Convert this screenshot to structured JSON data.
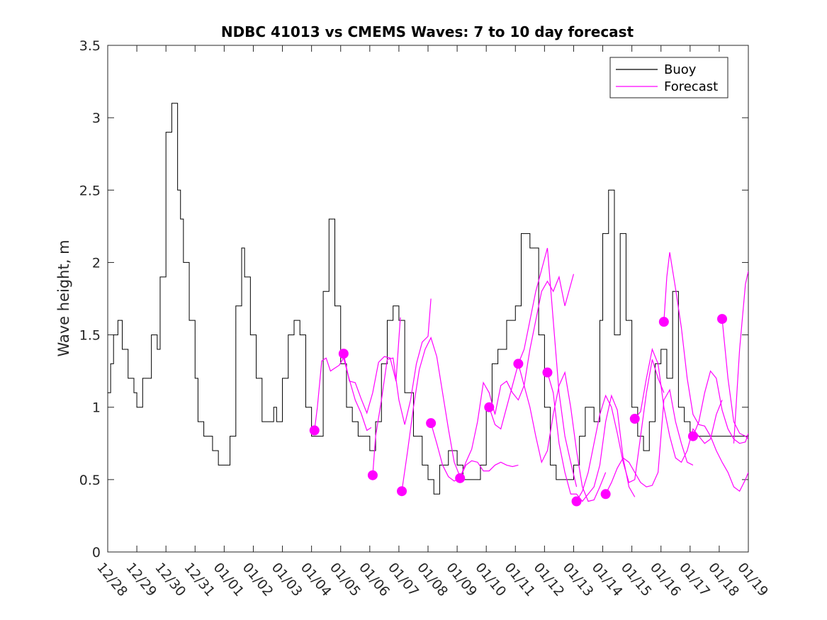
{
  "chart_data": {
    "type": "line",
    "title": "NDBC 41013 vs CMEMS Waves: 7 to 10 day forecast",
    "xlabel": "",
    "ylabel": "Wave height, m",
    "xlim": [
      0,
      22
    ],
    "ylim": [
      0,
      3.5
    ],
    "x_ticks": [
      0,
      1,
      2,
      3,
      4,
      5,
      6,
      7,
      8,
      9,
      10,
      11,
      12,
      13,
      14,
      15,
      16,
      17,
      18,
      19,
      20,
      21,
      22
    ],
    "x_tick_labels": [
      "12/28",
      "12/29",
      "12/30",
      "12/31",
      "01/01",
      "01/02",
      "01/03",
      "01/04",
      "01/05",
      "01/06",
      "01/07",
      "01/08",
      "01/09",
      "01/10",
      "01/11",
      "01/12",
      "01/13",
      "01/14",
      "01/15",
      "01/16",
      "01/17",
      "01/18",
      "01/19"
    ],
    "y_ticks": [
      0,
      0.5,
      1,
      1.5,
      2,
      2.5,
      3,
      3.5
    ],
    "y_tick_labels": [
      "0",
      "0.5",
      "1",
      "1.5",
      "2",
      "2.5",
      "3",
      "3.5"
    ],
    "legend": {
      "position": "top-right",
      "entries": [
        "Buoy",
        "Forecast"
      ]
    },
    "colors": {
      "buoy": "#000000",
      "forecast": "#ff00ff"
    },
    "series": [
      {
        "name": "Buoy",
        "x": [
          0,
          0.1,
          0.2,
          0.35,
          0.5,
          0.7,
          0.9,
          1.0,
          1.2,
          1.5,
          1.7,
          1.8,
          2.0,
          2.2,
          2.4,
          2.5,
          2.6,
          2.8,
          3.0,
          3.1,
          3.3,
          3.6,
          3.8,
          4.0,
          4.2,
          4.4,
          4.6,
          4.7,
          4.9,
          5.1,
          5.3,
          5.5,
          5.7,
          5.8,
          6.0,
          6.2,
          6.4,
          6.6,
          6.8,
          7.0,
          7.2,
          7.4,
          7.6,
          7.8,
          8.0,
          8.2,
          8.4,
          8.6,
          8.8,
          9.0,
          9.2,
          9.4,
          9.6,
          9.8,
          10.0,
          10.2,
          10.5,
          10.8,
          11.0,
          11.2,
          11.4,
          11.7,
          12.0,
          12.2,
          12.5,
          12.8,
          13.0,
          13.2,
          13.4,
          13.7,
          14.0,
          14.2,
          14.5,
          14.8,
          15.0,
          15.2,
          15.4,
          15.6,
          15.8,
          16.0,
          16.2,
          16.4,
          16.5,
          16.7,
          16.9,
          17.0,
          17.2,
          17.4,
          17.6,
          17.8,
          18.0,
          18.2,
          18.4,
          18.6,
          18.8,
          19.0,
          19.2,
          19.4,
          19.6,
          19.8,
          20.0,
          20.2,
          20.4,
          20.6,
          20.8,
          21.0,
          21.2,
          21.4,
          21.6,
          21.8,
          22.0
        ],
        "values": [
          1.1,
          1.3,
          1.5,
          1.6,
          1.4,
          1.2,
          1.1,
          1.0,
          1.2,
          1.5,
          1.4,
          1.9,
          2.9,
          3.1,
          2.5,
          2.3,
          2.0,
          1.6,
          1.2,
          0.9,
          0.8,
          0.7,
          0.6,
          0.6,
          0.8,
          1.7,
          2.1,
          1.9,
          1.5,
          1.2,
          0.9,
          0.9,
          1.0,
          0.9,
          1.2,
          1.5,
          1.6,
          1.5,
          1.0,
          0.8,
          0.8,
          1.8,
          2.3,
          1.7,
          1.3,
          1.0,
          0.9,
          0.8,
          0.8,
          0.7,
          0.9,
          1.3,
          1.6,
          1.7,
          1.6,
          1.1,
          0.8,
          0.6,
          0.5,
          0.4,
          0.6,
          0.7,
          0.6,
          0.5,
          0.5,
          0.6,
          1.0,
          1.3,
          1.4,
          1.6,
          1.7,
          2.2,
          2.1,
          1.5,
          1.0,
          0.6,
          0.5,
          0.5,
          0.5,
          0.6,
          0.8,
          1.0,
          1.0,
          0.9,
          1.6,
          2.2,
          2.5,
          1.5,
          2.2,
          1.6,
          1.0,
          0.8,
          0.7,
          0.9,
          1.3,
          1.4,
          1.2,
          1.8,
          1.0,
          0.9,
          0.8,
          0.8,
          0.8,
          0.8,
          0.8,
          0.8,
          0.8,
          0.8,
          0.8,
          0.8,
          0.8
        ]
      },
      {
        "name": "Forecast",
        "segments": [
          {
            "x": [
              7.1,
              7.2,
              7.35,
              7.5,
              7.65,
              7.8,
              7.95,
              8.1,
              8.3,
              8.5,
              8.7,
              8.9,
              9.05
            ],
            "values": [
              0.84,
              1.0,
              1.32,
              1.34,
              1.25,
              1.27,
              1.29,
              1.34,
              1.19,
              1.05,
              0.96,
              0.84,
              0.86
            ]
          },
          {
            "x": [
              8.1,
              8.3,
              8.5,
              8.7,
              8.9,
              9.1,
              9.3,
              9.5,
              9.7,
              9.9,
              10.05
            ],
            "values": [
              1.37,
              1.18,
              1.17,
              1.06,
              0.96,
              1.1,
              1.31,
              1.35,
              1.34,
              1.18,
              1.62
            ]
          },
          {
            "x": [
              9.1,
              9.2,
              9.4,
              9.6,
              9.8,
              10.0,
              10.2,
              10.4,
              10.6,
              10.8,
              11.0,
              11.1
            ],
            "values": [
              0.53,
              0.8,
              1.05,
              1.33,
              1.34,
              1.05,
              0.88,
              1.05,
              1.3,
              1.45,
              1.49,
              1.75
            ]
          },
          {
            "x": [
              10.1,
              10.3,
              10.5,
              10.7,
              10.9,
              11.1,
              11.3,
              11.5,
              11.7,
              11.9,
              12.1
            ],
            "values": [
              0.42,
              0.7,
              1.0,
              1.26,
              1.4,
              1.48,
              1.35,
              1.1,
              0.85,
              0.62,
              0.52
            ]
          },
          {
            "x": [
              11.1,
              11.3,
              11.5,
              11.7,
              11.9,
              12.1,
              12.3,
              12.5,
              12.7,
              12.9,
              13.1,
              13.3,
              13.5,
              13.7,
              13.9,
              14.1
            ],
            "values": [
              0.89,
              0.75,
              0.6,
              0.52,
              0.49,
              0.51,
              0.6,
              0.63,
              0.62,
              0.56,
              0.56,
              0.6,
              0.62,
              0.6,
              0.59,
              0.6
            ]
          },
          {
            "x": [
              12.1,
              12.3,
              12.5,
              12.7,
              12.9,
              13.1,
              13.3,
              13.5,
              13.7,
              13.9,
              14.1,
              14.3,
              14.5,
              14.7,
              14.9,
              15.1,
              15.3,
              15.5,
              15.7,
              16.0
            ],
            "values": [
              0.51,
              0.62,
              0.71,
              0.9,
              1.17,
              1.1,
              0.95,
              1.15,
              1.18,
              1.1,
              1.05,
              1.15,
              1.4,
              1.6,
              1.8,
              1.87,
              1.8,
              1.9,
              1.7,
              1.92
            ]
          },
          {
            "x": [
              13.1,
              13.3,
              13.5,
              13.7,
              13.9,
              14.1,
              14.3,
              14.5,
              14.7,
              14.9,
              15.1,
              15.3,
              15.5,
              15.7,
              15.9,
              16.1
            ],
            "values": [
              1.0,
              0.88,
              0.85,
              1.0,
              1.15,
              1.3,
              1.4,
              1.6,
              1.8,
              1.95,
              2.1,
              1.6,
              1.1,
              0.8,
              0.62,
              0.45
            ]
          },
          {
            "x": [
              14.1,
              14.3,
              14.5,
              14.7,
              14.9,
              15.1,
              15.3,
              15.5,
              15.7,
              15.9,
              16.1,
              16.3,
              16.5,
              16.7,
              16.9,
              17.1
            ],
            "values": [
              1.3,
              1.15,
              1.0,
              0.8,
              0.62,
              0.7,
              0.95,
              1.15,
              1.24,
              1.0,
              0.7,
              0.45,
              0.35,
              0.36,
              0.45,
              0.55
            ]
          },
          {
            "x": [
              15.1,
              15.3,
              15.5,
              15.7,
              15.9,
              16.1,
              16.3,
              16.5,
              16.7,
              16.9,
              17.1,
              17.3,
              17.5,
              17.7,
              17.9,
              18.1
            ],
            "values": [
              1.24,
              1.1,
              0.75,
              0.55,
              0.4,
              0.4,
              0.35,
              0.4,
              0.45,
              0.6,
              0.9,
              1.08,
              0.98,
              0.65,
              0.45,
              0.38
            ]
          },
          {
            "x": [
              16.1,
              16.3,
              16.5,
              16.7,
              16.9,
              17.1,
              17.3,
              17.5,
              17.7,
              17.9,
              18.1,
              18.3,
              18.5,
              18.7,
              18.9,
              19.1
            ],
            "values": [
              0.35,
              0.42,
              0.55,
              0.75,
              0.95,
              1.08,
              1.0,
              0.82,
              0.62,
              0.48,
              0.5,
              0.8,
              1.1,
              1.33,
              1.2,
              1.1
            ]
          },
          {
            "x": [
              17.1,
              17.3,
              17.5,
              17.7,
              17.9,
              18.1,
              18.3,
              18.5,
              18.7,
              18.9,
              19.1,
              19.3,
              19.5,
              19.7,
              19.9,
              20.1
            ],
            "values": [
              0.4,
              0.48,
              0.58,
              0.65,
              0.62,
              0.55,
              0.48,
              0.45,
              0.46,
              0.55,
              1.05,
              1.12,
              0.9,
              0.75,
              0.62,
              0.6
            ]
          },
          {
            "x": [
              18.1,
              18.3,
              18.5,
              18.7,
              18.9,
              19.1,
              19.3,
              19.5,
              19.7,
              19.9,
              20.1,
              20.3,
              20.5,
              20.7,
              20.9,
              21.1
            ],
            "values": [
              0.92,
              0.97,
              1.2,
              1.4,
              1.3,
              1.0,
              0.8,
              0.65,
              0.62,
              0.7,
              0.85,
              0.8,
              0.75,
              0.78,
              0.95,
              1.05
            ]
          },
          {
            "x": [
              19.1,
              19.2,
              19.3,
              19.5,
              19.7,
              19.9,
              20.1,
              20.3,
              20.5,
              20.7,
              20.9,
              21.1,
              21.3,
              21.5,
              21.7,
              21.9,
              22.0
            ],
            "values": [
              1.59,
              1.9,
              2.07,
              1.82,
              1.55,
              1.2,
              0.95,
              0.88,
              0.87,
              0.8,
              0.7,
              0.62,
              0.55,
              0.45,
              0.42,
              0.5,
              0.55
            ]
          },
          {
            "x": [
              20.1,
              20.3,
              20.5,
              20.7,
              20.9,
              21.1,
              21.3,
              21.5,
              21.7,
              21.9,
              22.0
            ],
            "values": [
              0.8,
              0.9,
              1.1,
              1.25,
              1.2,
              0.98,
              0.85,
              0.78,
              0.75,
              0.76,
              0.82
            ]
          },
          {
            "x": [
              21.1,
              21.3,
              21.5,
              21.7,
              21.9,
              22.0
            ],
            "values": [
              1.61,
              1.2,
              0.9,
              0.82,
              0.8,
              0.78
            ]
          },
          {
            "x": [
              21.5,
              21.7,
              21.9,
              22.0
            ],
            "values": [
              0.75,
              1.4,
              1.85,
              1.94
            ]
          }
        ],
        "markers": {
          "x": [
            7.1,
            8.1,
            9.1,
            10.1,
            11.1,
            12.1,
            13.1,
            14.1,
            15.1,
            16.1,
            17.1,
            18.1,
            19.1,
            20.1,
            21.1
          ],
          "values": [
            0.84,
            1.37,
            0.53,
            0.42,
            0.89,
            0.51,
            1.0,
            1.3,
            1.24,
            0.35,
            0.4,
            0.92,
            1.59,
            0.8,
            1.61
          ]
        }
      }
    ]
  }
}
